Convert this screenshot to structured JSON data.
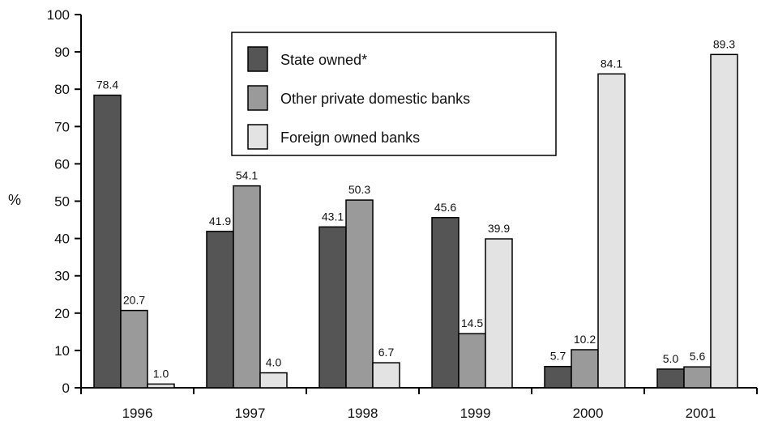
{
  "chart_data": {
    "type": "bar",
    "categories": [
      "1996",
      "1997",
      "1998",
      "1999",
      "2000",
      "2001"
    ],
    "series": [
      {
        "name": "State owned*",
        "color": "#555555",
        "values": [
          78.4,
          41.9,
          43.1,
          45.6,
          5.7,
          5.0
        ],
        "labels": [
          "78.4",
          "41.9",
          "43.1",
          "45.6",
          "5.7",
          "5.0"
        ]
      },
      {
        "name": "Other private domestic banks",
        "color": "#9a9a9a",
        "values": [
          20.7,
          54.1,
          50.3,
          14.5,
          10.2,
          5.6
        ],
        "labels": [
          "20.7",
          "54.1",
          "50.3",
          "14.5",
          "10.2",
          "5.6"
        ]
      },
      {
        "name": "Foreign owned banks",
        "color": "#e3e3e3",
        "values": [
          1.0,
          4.0,
          6.7,
          39.9,
          84.1,
          89.3
        ],
        "labels": [
          "1.0",
          "4.0",
          "6.7",
          "39.9",
          "84.1",
          "89.3"
        ]
      }
    ],
    "ylabel": "%",
    "ylim": [
      0,
      100
    ],
    "yticks": [
      "0",
      "10",
      "20",
      "30",
      "40",
      "50",
      "60",
      "70",
      "80",
      "90",
      "100"
    ],
    "grid": false,
    "legend_position": "top-center"
  }
}
